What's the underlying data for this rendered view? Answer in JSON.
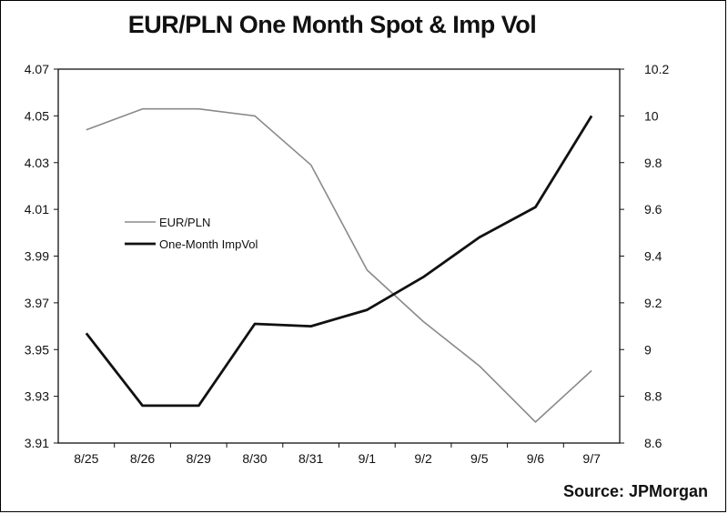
{
  "chart_data": {
    "type": "line",
    "title": "EUR/PLN One Month Spot & Imp Vol",
    "categories": [
      "8/25",
      "8/26",
      "8/29",
      "8/30",
      "8/31",
      "9/1",
      "9/2",
      "9/5",
      "9/6",
      "9/7"
    ],
    "series": [
      {
        "name": "EUR/PLN",
        "axis": "left",
        "color": "#8a8a8a",
        "values": [
          4.044,
          4.053,
          4.053,
          4.05,
          4.029,
          3.984,
          3.962,
          3.943,
          3.919,
          3.941
        ]
      },
      {
        "name": "One-Month ImpVol",
        "axis": "right",
        "color": "#111111",
        "values": [
          9.07,
          8.76,
          8.76,
          9.11,
          9.1,
          9.17,
          9.31,
          9.48,
          9.61,
          10.0
        ]
      }
    ],
    "y_left": {
      "ylim": [
        3.91,
        4.07
      ],
      "ticks": [
        "3.91",
        "3.93",
        "3.95",
        "3.97",
        "3.99",
        "4.01",
        "4.03",
        "4.05",
        "4.07"
      ]
    },
    "y_right": {
      "ylim": [
        8.6,
        10.2
      ],
      "ticks": [
        "8.6",
        "8.8",
        "9",
        "9.2",
        "9.4",
        "9.6",
        "9.8",
        "10",
        "10.2"
      ]
    },
    "legend_position": "center-left",
    "grid": false,
    "xlabel": "",
    "ylabel": ""
  },
  "source": {
    "label": "Source:",
    "name": "JPMorgan"
  }
}
